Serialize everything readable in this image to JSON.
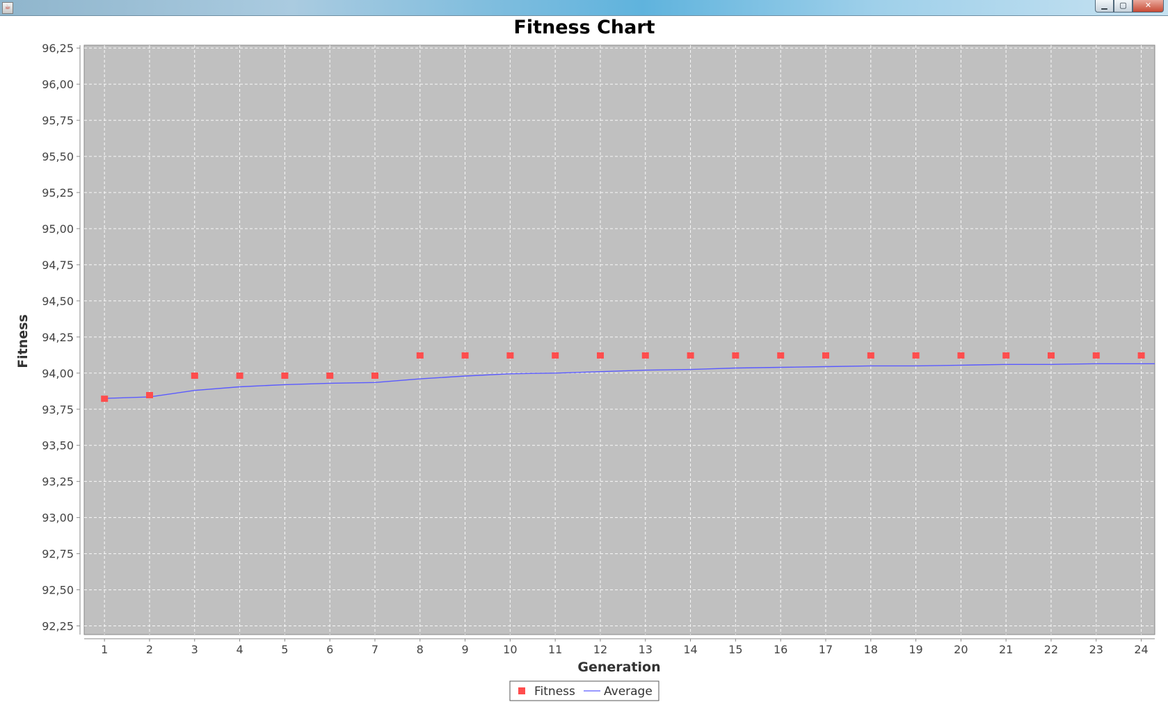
{
  "window": {
    "title": "",
    "controls": {
      "minimize": "▁",
      "maximize": "▢",
      "close": "✕"
    }
  },
  "colors": {
    "plot_background": "#c0c0c0",
    "gridline": "#ffffff",
    "fitness_marker": "#ff4d4d",
    "average_line": "#5a5aff"
  },
  "chart_data": {
    "type": "line",
    "title": "Fitness Chart",
    "xlabel": "Generation",
    "ylabel": "Fitness",
    "xlim": [
      0.55,
      24.3
    ],
    "ylim": [
      92.19,
      96.27
    ],
    "x_ticks": [
      1,
      2,
      3,
      4,
      5,
      6,
      7,
      8,
      9,
      10,
      11,
      12,
      13,
      14,
      15,
      16,
      17,
      18,
      19,
      20,
      21,
      22,
      23,
      24
    ],
    "y_ticks": [
      "92,25",
      "92,50",
      "92,75",
      "93,00",
      "93,25",
      "93,50",
      "93,75",
      "94,00",
      "94,25",
      "94,50",
      "94,75",
      "95,00",
      "95,25",
      "95,50",
      "95,75",
      "96,00",
      "96,25"
    ],
    "grid": true,
    "legend_position": "bottom-center",
    "x": [
      1,
      2,
      3,
      4,
      5,
      6,
      7,
      8,
      9,
      10,
      11,
      12,
      13,
      14,
      15,
      16,
      17,
      18,
      19,
      20,
      21,
      22,
      23,
      24
    ],
    "series": [
      {
        "name": "Fitness",
        "style": "markers",
        "values": [
          93.82,
          93.845,
          93.98,
          93.98,
          93.98,
          93.98,
          93.98,
          94.12,
          94.12,
          94.12,
          94.12,
          94.12,
          94.12,
          94.12,
          94.12,
          94.12,
          94.12,
          94.12,
          94.12,
          94.12,
          94.12,
          94.12,
          94.12,
          94.12
        ]
      },
      {
        "name": "Average",
        "style": "line",
        "values": [
          93.825,
          93.835,
          93.88,
          93.905,
          93.92,
          93.93,
          93.935,
          93.96,
          93.98,
          93.995,
          94.0,
          94.01,
          94.02,
          94.025,
          94.035,
          94.04,
          94.045,
          94.05,
          94.05,
          94.055,
          94.06,
          94.06,
          94.065,
          94.065
        ],
        "extends_to_x": 24.3,
        "end_value": 94.065
      }
    ]
  }
}
